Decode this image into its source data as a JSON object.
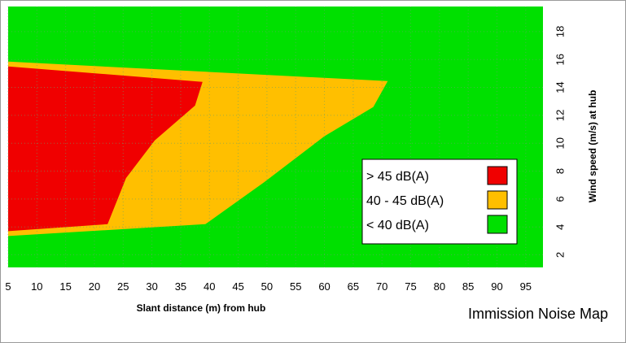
{
  "chart_data": {
    "type": "heatmap",
    "title": "Immission Noise Map",
    "xlabel": "Slant distance (m) from hub",
    "ylabel": "Wind speed (m/s) at hub",
    "xlim": [
      5,
      98
    ],
    "ylim": [
      1.1,
      19.8
    ],
    "x_ticks": [
      5,
      10,
      15,
      20,
      25,
      30,
      35,
      40,
      45,
      50,
      55,
      60,
      65,
      70,
      75,
      80,
      85,
      90,
      95
    ],
    "y_ticks": [
      2,
      4,
      6,
      8,
      10,
      12,
      14,
      16,
      18
    ],
    "grid": true,
    "colors": {
      "high": "#f00000",
      "mid": "#ffbf00",
      "low": "#00e000",
      "grid": "#6aa06a"
    },
    "legend_position": "bottom-right",
    "zones": [
      {
        "label": "> 45 dB(A)",
        "color": "#f00000",
        "polygon": [
          [
            5,
            15.5
          ],
          [
            38.8,
            14.4
          ],
          [
            37.5,
            12.7
          ],
          [
            30.5,
            10.2
          ],
          [
            25.5,
            7.5
          ],
          [
            22.3,
            4.2
          ],
          [
            5,
            3.7
          ]
        ]
      },
      {
        "label": "40 - 45 dB(A)",
        "color": "#ffbf00",
        "polygon": [
          [
            5,
            15.85
          ],
          [
            71,
            14.45
          ],
          [
            68.5,
            12.6
          ],
          [
            60,
            10.5
          ],
          [
            49.5,
            7.2
          ],
          [
            39.3,
            4.2
          ],
          [
            5,
            3.35
          ]
        ]
      }
    ],
    "legend": [
      {
        "label": "> 45 dB(A)",
        "color": "#f00000"
      },
      {
        "label": "40 - 45 dB(A)",
        "color": "#ffbf00"
      },
      {
        "label": "< 40 dB(A)",
        "color": "#00e000"
      }
    ]
  }
}
